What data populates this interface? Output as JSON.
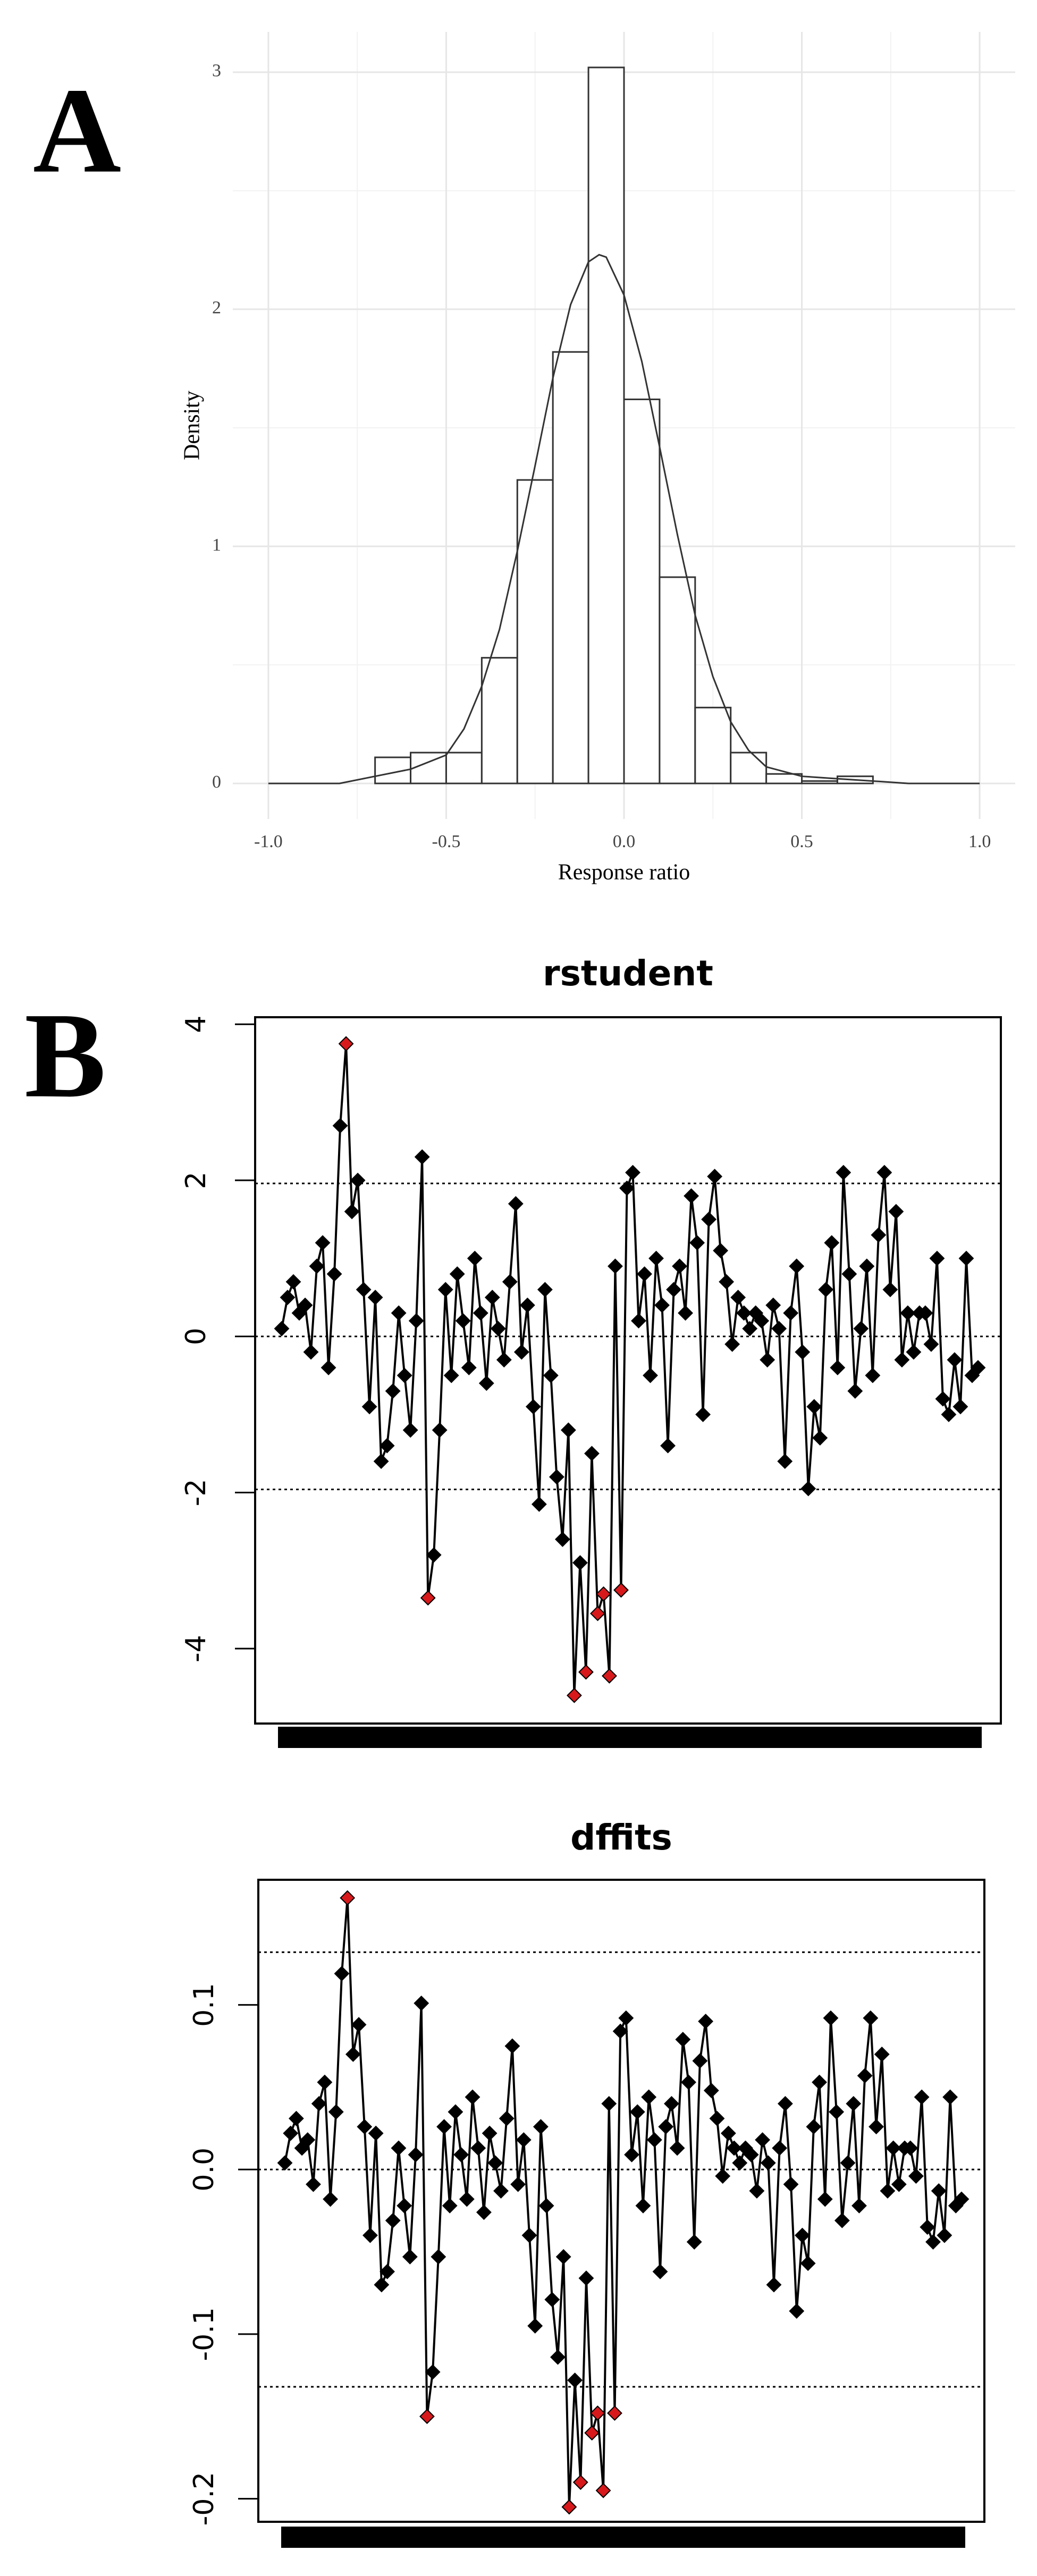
{
  "chart_data": [
    {
      "type": "histogram",
      "panel": "A",
      "xlabel": "Response ratio",
      "ylabel": "Density",
      "bins": [
        -0.7,
        -0.6,
        -0.5,
        -0.4,
        -0.3,
        -0.2,
        -0.1,
        0,
        0.1,
        0.2,
        0.3,
        0.4,
        0.5,
        0.6,
        0.7
      ],
      "values": [
        0.11,
        0.13,
        0.13,
        0.53,
        1.28,
        1.82,
        3.02,
        1.62,
        0.87,
        0.32,
        0.13,
        0.04,
        0.01,
        0.03
      ],
      "color": "#ffffff",
      "edge_color": "#333333",
      "curve": {
        "x": [
          -1,
          -0.8,
          -0.7,
          -0.6,
          -0.5,
          -0.45,
          -0.4,
          -0.35,
          -0.3,
          -0.25,
          -0.2,
          -0.15,
          -0.1,
          -0.07,
          -0.05,
          0,
          0.05,
          0.1,
          0.15,
          0.2,
          0.25,
          0.3,
          0.35,
          0.4,
          0.5,
          0.6,
          0.7,
          0.8,
          1
        ],
        "y": [
          0,
          0,
          0.03,
          0.06,
          0.12,
          0.23,
          0.41,
          0.65,
          0.98,
          1.34,
          1.71,
          2.02,
          2.2,
          2.23,
          2.22,
          2.06,
          1.78,
          1.42,
          1.05,
          0.71,
          0.45,
          0.26,
          0.14,
          0.07,
          0.03,
          0.02,
          0.01,
          0,
          0
        ],
        "color": "#333333"
      },
      "xlim": [
        -1.1,
        1.1
      ],
      "ylim": [
        -0.15,
        3.17
      ],
      "xticks": [
        {
          "value": -1,
          "label": "-1.0"
        },
        -0.5,
        {
          "value": 0,
          "label": "0.0"
        },
        0.5,
        {
          "value": 1,
          "label": "1.0"
        }
      ],
      "yticks": [
        0,
        1,
        2,
        3
      ],
      "x_minor_ticks": [
        -0.75,
        -0.25,
        0.25,
        0.75
      ],
      "y_minor_ticks": [
        0.5,
        1.5,
        2.5
      ],
      "grid": true
    },
    {
      "type": "line",
      "panel": "B",
      "title": "rstudent",
      "color": "#000000",
      "categories": [
        null,
        null,
        null,
        null,
        null,
        null,
        null,
        null,
        null,
        null,
        null,
        null,
        null,
        null,
        null,
        null,
        null,
        null,
        null,
        null,
        null,
        null,
        null,
        null,
        null,
        null,
        null,
        null,
        null,
        null,
        null,
        null,
        null,
        null,
        null,
        null,
        null,
        null,
        null,
        null,
        null,
        null,
        null,
        null,
        null,
        null,
        null,
        null,
        null,
        null,
        null,
        null,
        null,
        null,
        null,
        null,
        null,
        null,
        null,
        null,
        null,
        null,
        null,
        null,
        null,
        null,
        null,
        null,
        null,
        null,
        null,
        null,
        null,
        null,
        null,
        null,
        null,
        null,
        null,
        null,
        null,
        null,
        null,
        null,
        null,
        null,
        null,
        null,
        null,
        null,
        null,
        null,
        null,
        null,
        null,
        null,
        null,
        null,
        null,
        null,
        null,
        null,
        null,
        null,
        null,
        null,
        null,
        null,
        null,
        null,
        null,
        null,
        null,
        null,
        null,
        null,
        null,
        null,
        null,
        null
      ],
      "values": [
        0.1,
        0.5,
        0.7,
        0.3,
        0.4,
        -0.2,
        0.9,
        1.2,
        -0.4,
        0.8,
        2.7,
        3.75,
        1.6,
        2.0,
        0.6,
        -0.9,
        0.5,
        -1.6,
        -1.4,
        -0.7,
        0.3,
        -0.5,
        -1.2,
        0.2,
        2.3,
        -3.35,
        -2.8,
        -1.2,
        0.6,
        -0.5,
        0.8,
        0.2,
        -0.4,
        1.0,
        0.3,
        -0.6,
        0.5,
        0.1,
        -0.3,
        0.7,
        1.7,
        -0.2,
        0.4,
        -0.9,
        -2.15,
        0.6,
        -0.5,
        -1.8,
        -2.6,
        -1.2,
        -4.6,
        -2.9,
        -4.3,
        -1.5,
        -3.55,
        -3.3,
        -4.35,
        0.9,
        -3.25,
        1.9,
        2.1,
        0.2,
        0.8,
        -0.5,
        1.0,
        0.4,
        -1.4,
        0.6,
        0.9,
        0.3,
        1.8,
        1.2,
        -1.0,
        1.5,
        2.05,
        1.1,
        0.7,
        -0.1,
        0.5,
        0.3,
        0.1,
        0.3,
        0.2,
        -0.3,
        0.4,
        0.1,
        -1.6,
        0.3,
        0.9,
        -0.2,
        -1.95,
        -0.9,
        -1.3,
        0.6,
        1.2,
        -0.4,
        2.1,
        0.8,
        -0.7,
        0.1,
        0.9,
        -0.5,
        1.3,
        2.1,
        0.6,
        1.6,
        -0.3,
        0.3,
        -0.2,
        0.3,
        0.3,
        -0.1,
        1.0,
        -0.8,
        -1.0,
        -0.3,
        -0.9,
        1.0,
        -0.5,
        -0.4
      ],
      "marker_colors": [
        "#000",
        "#000",
        "#000",
        "#000",
        "#000",
        "#000",
        "#000",
        "#000",
        "#000",
        "#000",
        "#000",
        "#d7191c",
        "#000",
        "#000",
        "#000",
        "#000",
        "#000",
        "#000",
        "#000",
        "#000",
        "#000",
        "#000",
        "#000",
        "#000",
        "#000",
        "#d7191c",
        "#000",
        "#000",
        "#000",
        "#000",
        "#000",
        "#000",
        "#000",
        "#000",
        "#000",
        "#000",
        "#000",
        "#000",
        "#000",
        "#000",
        "#000",
        "#000",
        "#000",
        "#000",
        "#000",
        "#000",
        "#000",
        "#000",
        "#000",
        "#000",
        "#d7191c",
        "#000",
        "#d7191c",
        "#000",
        "#d7191c",
        "#d7191c",
        "#d7191c",
        "#000",
        "#d7191c",
        "#000",
        "#000",
        "#000",
        "#000",
        "#000",
        "#000",
        "#000",
        "#000",
        "#000",
        "#000",
        "#000",
        "#000",
        "#000",
        "#000",
        "#000",
        "#000",
        "#000",
        "#000",
        "#000",
        "#000",
        "#000",
        "#000",
        "#000",
        "#000",
        "#000",
        "#000",
        "#000",
        "#000",
        "#000",
        "#000",
        "#000",
        "#000",
        "#000",
        "#000",
        "#000",
        "#000",
        "#000",
        "#000",
        "#000",
        "#000",
        "#000",
        "#000",
        "#000",
        "#000",
        "#000",
        "#000",
        "#000",
        "#000",
        "#000",
        "#000",
        "#000",
        "#000",
        "#000",
        "#000",
        "#000",
        "#000",
        "#000",
        "#000",
        "#000",
        "#000",
        "#000"
      ],
      "ylim": [
        -4.96,
        4.09
      ],
      "yticks": [
        -4,
        -2,
        0,
        2,
        4
      ],
      "hlines": [
        1.96,
        0,
        -1.96
      ]
    },
    {
      "type": "line",
      "title": "dffits",
      "color": "#000000",
      "categories": [
        null,
        null,
        null,
        null,
        null,
        null,
        null,
        null,
        null,
        null,
        null,
        null,
        null,
        null,
        null,
        null,
        null,
        null,
        null,
        null,
        null,
        null,
        null,
        null,
        null,
        null,
        null,
        null,
        null,
        null,
        null,
        null,
        null,
        null,
        null,
        null,
        null,
        null,
        null,
        null,
        null,
        null,
        null,
        null,
        null,
        null,
        null,
        null,
        null,
        null,
        null,
        null,
        null,
        null,
        null,
        null,
        null,
        null,
        null,
        null,
        null,
        null,
        null,
        null,
        null,
        null,
        null,
        null,
        null,
        null,
        null,
        null,
        null,
        null,
        null,
        null,
        null,
        null,
        null,
        null,
        null,
        null,
        null,
        null,
        null,
        null,
        null,
        null,
        null,
        null,
        null,
        null,
        null,
        null,
        null,
        null,
        null,
        null,
        null,
        null,
        null,
        null,
        null,
        null,
        null,
        null,
        null,
        null,
        null,
        null,
        null,
        null,
        null,
        null,
        null,
        null,
        null,
        null,
        null,
        null
      ],
      "values": [
        0.004,
        0.022,
        0.031,
        0.013,
        0.018,
        -0.009,
        0.04,
        0.053,
        -0.018,
        0.035,
        0.119,
        0.165,
        0.07,
        0.088,
        0.026,
        -0.04,
        0.022,
        -0.07,
        -0.062,
        -0.031,
        0.013,
        -0.022,
        -0.053,
        0.009,
        0.101,
        -0.15,
        -0.123,
        -0.053,
        0.026,
        -0.022,
        0.035,
        0.009,
        -0.018,
        0.044,
        0.013,
        -0.026,
        0.022,
        0.004,
        -0.013,
        0.031,
        0.075,
        -0.009,
        0.018,
        -0.04,
        -0.095,
        0.026,
        -0.022,
        -0.079,
        -0.114,
        -0.053,
        -0.205,
        -0.128,
        -0.19,
        -0.066,
        -0.16,
        -0.148,
        -0.195,
        0.04,
        -0.148,
        0.084,
        0.092,
        0.009,
        0.035,
        -0.022,
        0.044,
        0.018,
        -0.062,
        0.026,
        0.04,
        0.013,
        0.079,
        0.053,
        -0.044,
        0.066,
        0.09,
        0.048,
        0.031,
        -0.004,
        0.022,
        0.013,
        0.004,
        0.013,
        0.009,
        -0.013,
        0.018,
        0.004,
        -0.07,
        0.013,
        0.04,
        -0.009,
        -0.086,
        -0.04,
        -0.057,
        0.026,
        0.053,
        -0.018,
        0.092,
        0.035,
        -0.031,
        0.004,
        0.04,
        -0.022,
        0.057,
        0.092,
        0.026,
        0.07,
        -0.013,
        0.013,
        -0.009,
        0.013,
        0.013,
        -0.004,
        0.044,
        -0.035,
        -0.044,
        -0.013,
        -0.04,
        0.044,
        -0.022,
        -0.018
      ],
      "marker_colors": [
        "#000",
        "#000",
        "#000",
        "#000",
        "#000",
        "#000",
        "#000",
        "#000",
        "#000",
        "#000",
        "#000",
        "#d7191c",
        "#000",
        "#000",
        "#000",
        "#000",
        "#000",
        "#000",
        "#000",
        "#000",
        "#000",
        "#000",
        "#000",
        "#000",
        "#000",
        "#d7191c",
        "#000",
        "#000",
        "#000",
        "#000",
        "#000",
        "#000",
        "#000",
        "#000",
        "#000",
        "#000",
        "#000",
        "#000",
        "#000",
        "#000",
        "#000",
        "#000",
        "#000",
        "#000",
        "#000",
        "#000",
        "#000",
        "#000",
        "#000",
        "#000",
        "#d7191c",
        "#000",
        "#d7191c",
        "#000",
        "#d7191c",
        "#d7191c",
        "#d7191c",
        "#000",
        "#d7191c",
        "#000",
        "#000",
        "#000",
        "#000",
        "#000",
        "#000",
        "#000",
        "#000",
        "#000",
        "#000",
        "#000",
        "#000",
        "#000",
        "#000",
        "#000",
        "#000",
        "#000",
        "#000",
        "#000",
        "#000",
        "#000",
        "#000",
        "#000",
        "#000",
        "#000",
        "#000",
        "#000",
        "#000",
        "#000",
        "#000",
        "#000",
        "#000",
        "#000",
        "#000",
        "#000",
        "#000",
        "#000",
        "#000",
        "#000",
        "#000",
        "#000",
        "#000",
        "#000",
        "#000",
        "#000",
        "#000",
        "#000",
        "#000",
        "#000",
        "#000",
        "#000",
        "#000",
        "#000",
        "#000",
        "#000",
        "#000",
        "#000",
        "#000",
        "#000",
        "#000",
        "#000"
      ],
      "ylim": [
        -0.214,
        0.176
      ],
      "yticks": [
        -0.2,
        -0.1,
        {
          "value": 0,
          "label": "0.0"
        },
        0.1
      ],
      "hlines": [
        0.132,
        0,
        -0.132
      ]
    }
  ]
}
